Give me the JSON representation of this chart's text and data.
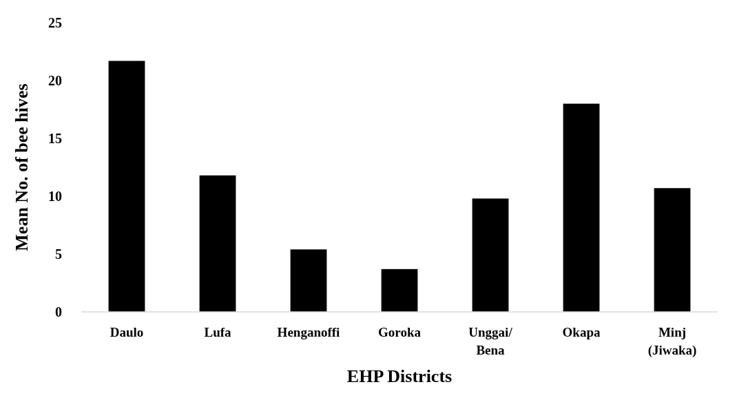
{
  "chart_data": {
    "type": "bar",
    "xlabel": "EHP Districts",
    "ylabel": "Mean No. of bee hives",
    "categories": [
      "Daulo",
      "Lufa",
      "Henganoffi",
      "Goroka",
      "Unggai/ Bena",
      "Okapa",
      "Minj (Jiwaka)"
    ],
    "values": [
      21.7,
      11.8,
      5.4,
      3.7,
      9.8,
      18.0,
      10.7
    ],
    "color": "#000000",
    "ylim": [
      0,
      25
    ],
    "yticks": [
      0,
      5,
      10,
      15,
      20,
      25
    ],
    "grid": false
  }
}
